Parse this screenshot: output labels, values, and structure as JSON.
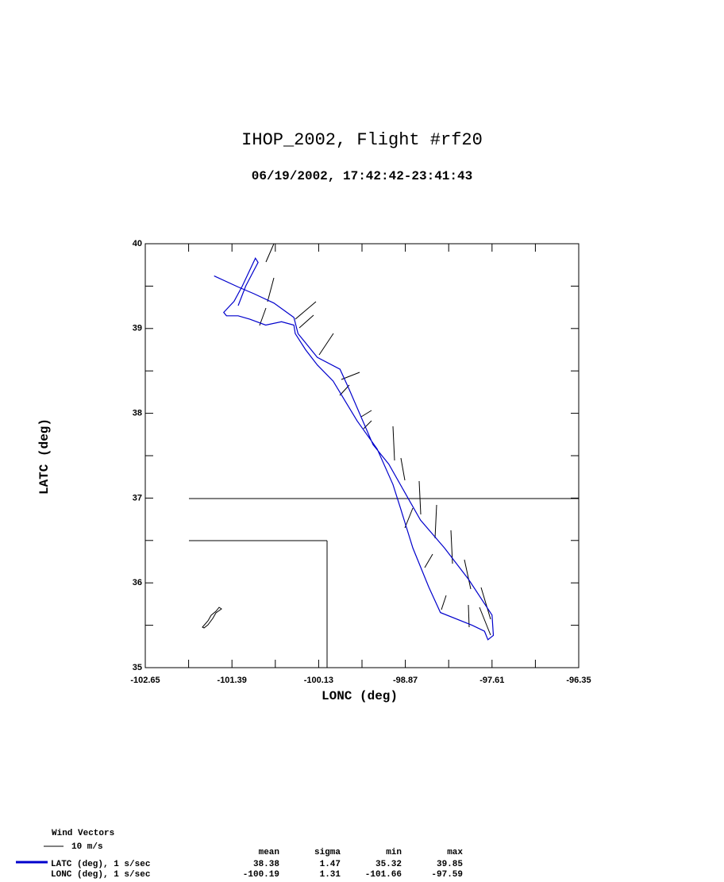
{
  "chart_data": {
    "type": "line",
    "title": "IHOP_2002, Flight #rf20",
    "subtitle": "06/19/2002, 17:42:42-23:41:43",
    "x_label": "LONC (deg)",
    "y_label": "LATC (deg)",
    "xlim": [
      -102.65,
      -96.35
    ],
    "xticks": [
      -102.65,
      -101.39,
      -100.13,
      -98.87,
      -97.61,
      -96.35
    ],
    "ylim": [
      35,
      40
    ],
    "yticks": [
      35,
      36,
      37,
      38,
      39,
      40
    ],
    "series": [
      {
        "name": "LATC (deg), 1 s/sec",
        "color": "#0000cc",
        "x": [
          -101.65,
          -101.3,
          -101.07,
          -100.78,
          -100.49,
          -100.43,
          -100.15,
          -99.82,
          -99.69,
          -99.34,
          -99.11,
          -98.88,
          -98.65,
          -98.3,
          -97.95,
          -97.61,
          -97.59,
          -97.67,
          -97.72,
          -97.9,
          -98.36,
          -98.53,
          -98.76,
          -98.94,
          -99.05,
          -99.28,
          -99.57,
          -99.92,
          -100.15,
          -100.32,
          -100.47,
          -100.49,
          -100.67,
          -100.9,
          -101.13,
          -101.3,
          -101.47,
          -101.51,
          -101.36,
          -101.24,
          -101.13,
          -101.05,
          -101.01,
          -101.19,
          -101.3
        ],
        "values": [
          39.62,
          39.49,
          39.41,
          39.3,
          39.13,
          38.94,
          38.66,
          38.52,
          38.29,
          37.63,
          37.4,
          37.07,
          36.74,
          36.41,
          36.04,
          35.62,
          35.38,
          35.33,
          35.43,
          35.5,
          35.65,
          35.95,
          36.41,
          36.88,
          37.16,
          37.58,
          37.91,
          38.38,
          38.57,
          38.75,
          38.94,
          39.04,
          39.08,
          39.04,
          39.11,
          39.15,
          39.15,
          39.19,
          39.32,
          39.5,
          39.69,
          39.83,
          39.78,
          39.5,
          39.27
        ]
      }
    ],
    "wind_legend": {
      "title": "Wind Vectors",
      "label": "10 m/s"
    },
    "stats": {
      "columns": [
        "mean",
        "sigma",
        "min",
        "max"
      ],
      "rows": [
        {
          "values": [
            38.38,
            1.47,
            35.32,
            39.85
          ]
        },
        {
          "name": "LONC (deg), 1 s/sec",
          "values": [
            -100.19,
            1.31,
            -101.66,
            -97.59
          ]
        }
      ]
    }
  }
}
